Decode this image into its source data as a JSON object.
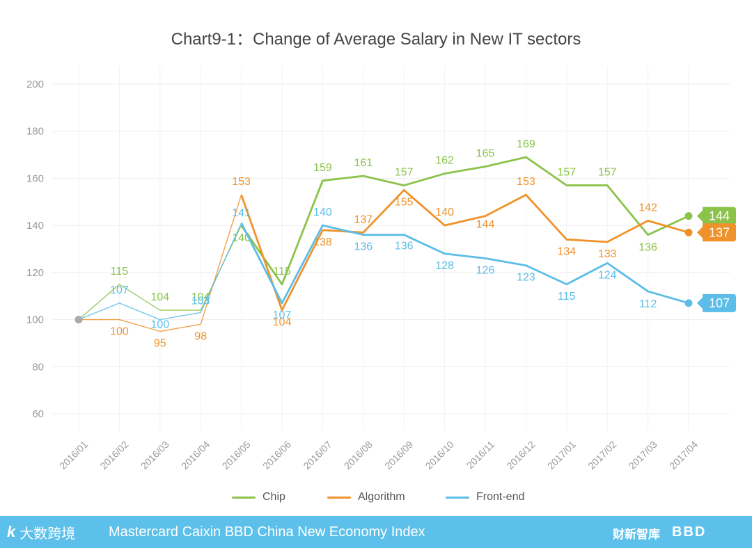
{
  "chart_data": {
    "type": "line",
    "title": "Chart9-1：Change of Average Salary in New IT sectors",
    "xlabel": "",
    "ylabel": "",
    "ylim": [
      60,
      200
    ],
    "yticks": [
      60,
      80,
      100,
      120,
      140,
      160,
      180,
      200
    ],
    "grid": true,
    "legend_position": "bottom",
    "categories": [
      "2016/01",
      "2016/02",
      "2016/03",
      "2016/04",
      "2016/05",
      "2016/06",
      "2016/07",
      "2016/08",
      "2016/09",
      "2016/10",
      "2016/11",
      "2016/12",
      "2017/01",
      "2017/02",
      "2017/03",
      "2017/04"
    ],
    "series": [
      {
        "name": "Chip",
        "color": "#8bc34a",
        "values": [
          100,
          115,
          104,
          104,
          140,
          115,
          159,
          161,
          157,
          162,
          165,
          169,
          157,
          157,
          136,
          144
        ],
        "end_label": "144"
      },
      {
        "name": "Algorithm",
        "color": "#f0922b",
        "values": [
          100,
          100,
          95,
          98,
          153,
          104,
          138,
          137,
          155,
          140,
          144,
          153,
          134,
          133,
          142,
          137
        ],
        "end_label": "137"
      },
      {
        "name": "Front-end",
        "color": "#5bbde8",
        "values": [
          100,
          107,
          100,
          103,
          141,
          107,
          140,
          136,
          136,
          128,
          126,
          123,
          115,
          124,
          112,
          107
        ],
        "end_label": "107"
      }
    ],
    "point_labels": [
      {
        "series": 0,
        "text": [
          "",
          "115",
          "104",
          "104",
          "140",
          "115",
          "159",
          "161",
          "157",
          "162",
          "165",
          "169",
          "157",
          "157",
          "136",
          ""
        ]
      },
      {
        "series": 1,
        "text": [
          "",
          "100",
          "95",
          "98",
          "153",
          "104",
          "138",
          "137",
          "155",
          "140",
          "144",
          "153",
          "134",
          "133",
          "142",
          ""
        ]
      },
      {
        "series": 2,
        "text": [
          "",
          "107",
          "100",
          "103",
          "141",
          "107",
          "140",
          "136",
          "136",
          "128",
          "126",
          "123",
          "115",
          "124",
          "112",
          ""
        ]
      }
    ]
  },
  "footer": {
    "text": "Mastercard Caixin BBD China New Economy Index",
    "logo_left_text": "大数跨境",
    "logo_left_mark": "k",
    "logo_right_1": "财新智库",
    "logo_right_2": "BBD",
    "background": "#5cc0ea"
  }
}
